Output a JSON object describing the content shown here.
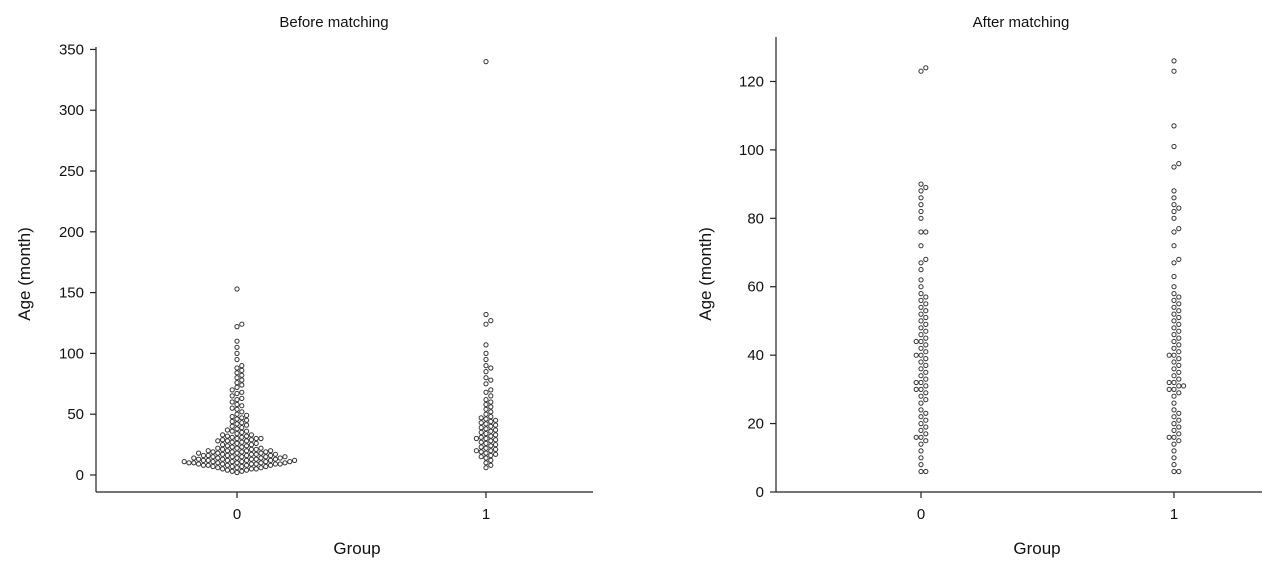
{
  "chart_data": [
    {
      "type": "scatter",
      "subtype": "beeswarm",
      "title": "Before matching",
      "xlabel": "Group",
      "ylabel": "Age (month)",
      "categories": [
        "0",
        "1"
      ],
      "yticks": [
        0,
        50,
        100,
        150,
        200,
        250,
        300,
        350
      ],
      "ylim": [
        -14,
        352
      ],
      "grid": false,
      "series": [
        {
          "values": [
            2,
            3,
            3,
            4,
            4,
            5,
            5,
            5,
            6,
            6,
            6,
            7,
            7,
            7,
            7,
            8,
            8,
            8,
            8,
            8,
            9,
            9,
            9,
            9,
            9,
            9,
            10,
            10,
            10,
            10,
            10,
            10,
            11,
            11,
            11,
            11,
            11,
            11,
            12,
            12,
            12,
            12,
            12,
            12,
            13,
            13,
            13,
            13,
            13,
            14,
            14,
            14,
            14,
            14,
            15,
            15,
            15,
            15,
            15,
            16,
            16,
            16,
            16,
            16,
            17,
            17,
            17,
            17,
            18,
            18,
            18,
            18,
            19,
            19,
            19,
            19,
            20,
            20,
            20,
            20,
            21,
            21,
            21,
            22,
            22,
            22,
            23,
            23,
            24,
            24,
            25,
            25,
            26,
            26,
            27,
            27,
            28,
            28,
            28,
            29,
            29,
            30,
            30,
            30,
            31,
            31,
            32,
            32,
            33,
            33,
            34,
            35,
            36,
            36,
            37,
            38,
            39,
            40,
            41,
            42,
            43,
            44,
            45,
            46,
            47,
            48,
            49,
            50,
            52,
            54,
            55,
            57,
            58,
            60,
            62,
            63,
            65,
            67,
            68,
            70,
            72,
            74,
            76,
            78,
            80,
            82,
            84,
            86,
            88,
            90,
            95,
            100,
            105,
            110,
            122,
            124,
            153
          ]
        },
        {
          "values": [
            6,
            8,
            10,
            12,
            14,
            15,
            16,
            17,
            18,
            19,
            20,
            20,
            21,
            22,
            23,
            24,
            25,
            26,
            27,
            28,
            29,
            30,
            30,
            31,
            32,
            33,
            34,
            35,
            36,
            37,
            38,
            39,
            40,
            41,
            42,
            43,
            44,
            45,
            46,
            47,
            48,
            50,
            52,
            54,
            56,
            58,
            60,
            62,
            65,
            68,
            70,
            75,
            78,
            80,
            85,
            88,
            90,
            95,
            100,
            107,
            124,
            127,
            132,
            340
          ]
        }
      ]
    },
    {
      "type": "scatter",
      "subtype": "beeswarm",
      "title": "After matching",
      "xlabel": "Group",
      "ylabel": "Age (month)",
      "categories": [
        "0",
        "1"
      ],
      "yticks": [
        0,
        20,
        40,
        60,
        80,
        100,
        120
      ],
      "ylim": [
        0,
        133
      ],
      "grid": false,
      "series": [
        {
          "values": [
            6,
            6,
            8,
            10,
            12,
            14,
            15,
            16,
            16,
            17,
            18,
            19,
            20,
            21,
            22,
            23,
            24,
            26,
            27,
            28,
            29,
            30,
            30,
            31,
            32,
            32,
            33,
            34,
            35,
            36,
            37,
            38,
            39,
            40,
            40,
            41,
            42,
            43,
            44,
            44,
            45,
            46,
            47,
            48,
            49,
            50,
            51,
            52,
            53,
            54,
            55,
            56,
            57,
            58,
            60,
            62,
            65,
            67,
            68,
            72,
            76,
            76,
            80,
            82,
            84,
            86,
            88,
            89,
            90,
            123,
            124
          ]
        },
        {
          "values": [
            6,
            6,
            8,
            10,
            12,
            14,
            15,
            16,
            16,
            17,
            18,
            19,
            20,
            21,
            22,
            23,
            24,
            26,
            28,
            29,
            30,
            30,
            31,
            31,
            32,
            32,
            33,
            34,
            35,
            36,
            37,
            38,
            39,
            40,
            40,
            41,
            42,
            43,
            44,
            45,
            46,
            47,
            48,
            49,
            50,
            51,
            52,
            53,
            54,
            55,
            56,
            57,
            58,
            60,
            63,
            67,
            68,
            72,
            76,
            77,
            80,
            82,
            83,
            84,
            86,
            88,
            95,
            96,
            101,
            107,
            123,
            126
          ]
        }
      ]
    }
  ]
}
